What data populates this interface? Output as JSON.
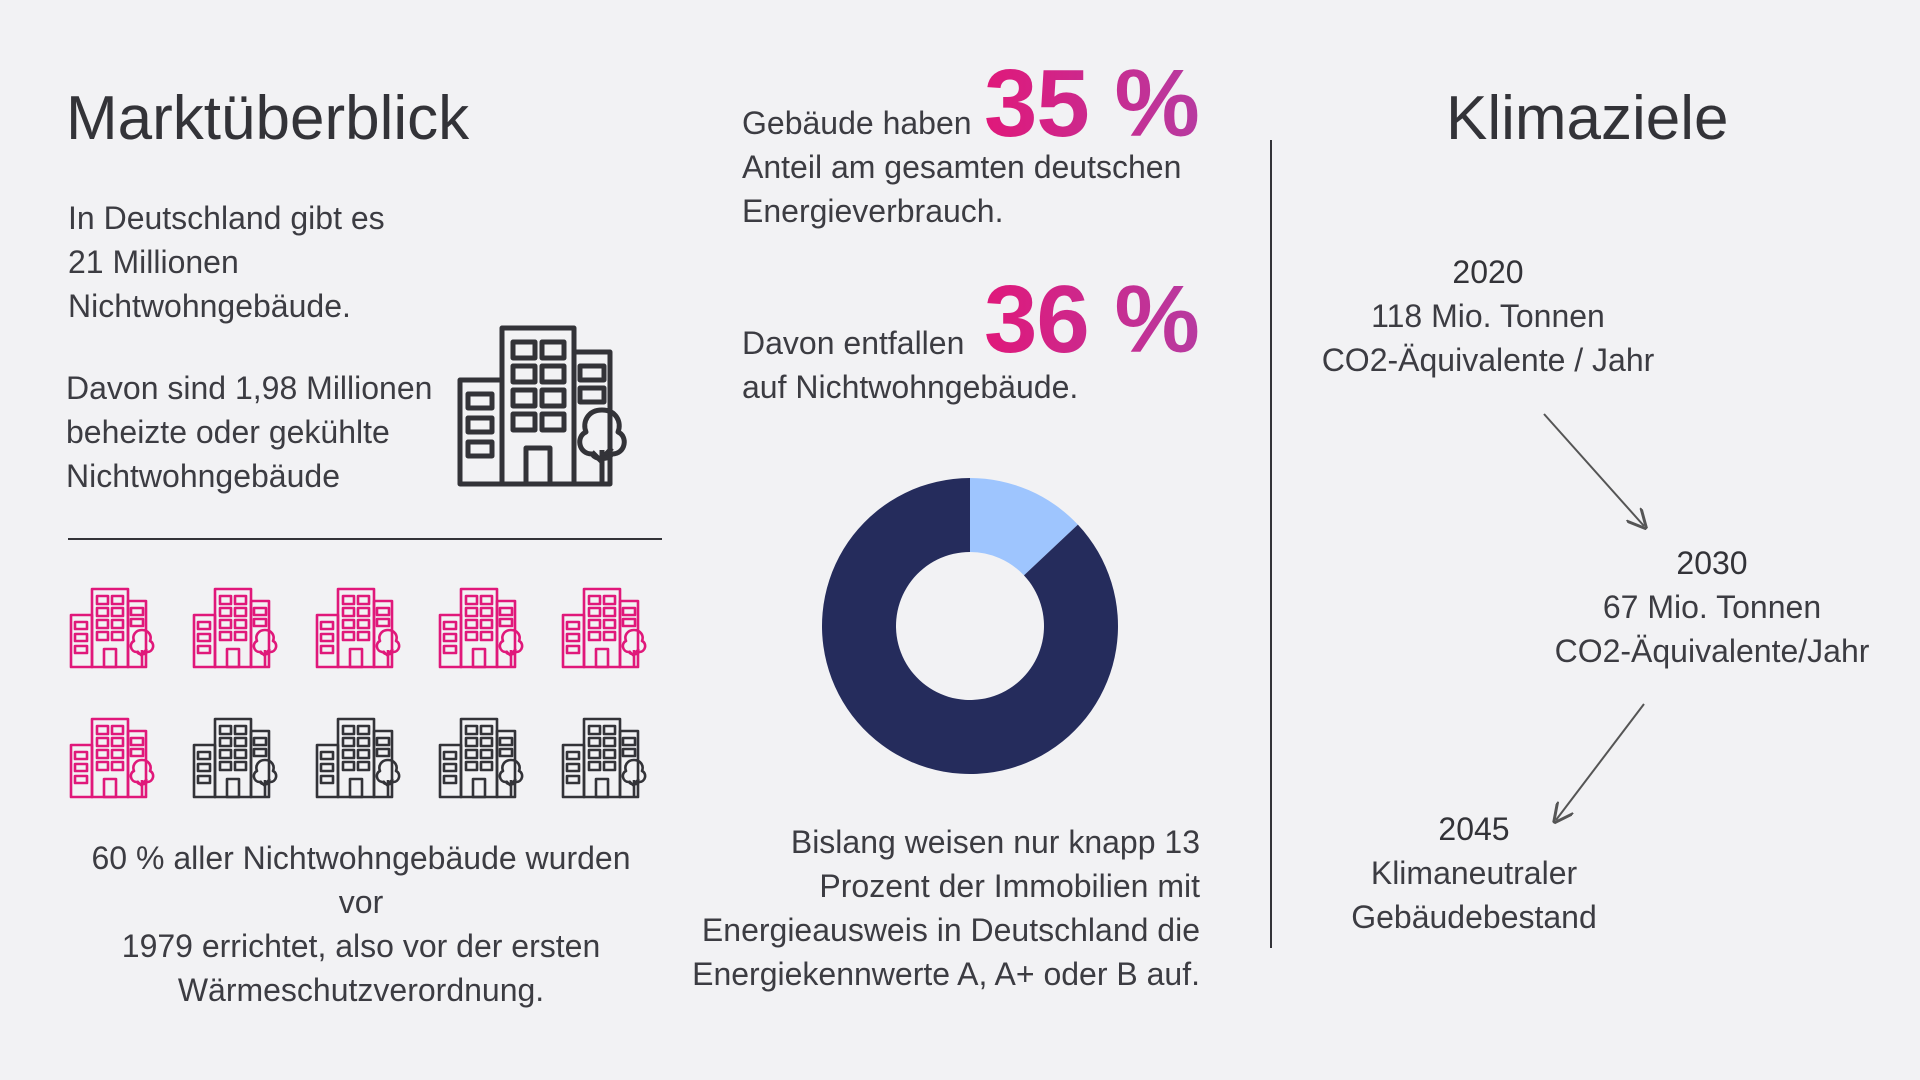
{
  "left": {
    "title": "Marktüberblick",
    "intro": [
      "In Deutschland gibt es",
      "21 Millionen",
      "Nichtwohngebäude."
    ],
    "sub": [
      "Davon sind 1,98 Millionen",
      "beheizte oder gekühlte",
      "Nichtwohngebäude"
    ],
    "grid": {
      "total": 10,
      "highlighted": 6,
      "highlight_color": "#e0187a",
      "base_color": "#333338"
    },
    "footer": [
      "60 % aller Nichtwohngebäude wurden vor",
      "1979 errichtet, also vor der ersten",
      "Wärmeschutzverordnung."
    ]
  },
  "middle": {
    "stat1": {
      "lead": "Gebäude haben",
      "value": "35 %",
      "rest": [
        "Anteil am gesamten deutschen",
        "Energieverbrauch."
      ]
    },
    "stat2": {
      "lead": "Davon entfallen",
      "value": "36 %",
      "rest": [
        "auf Nichtwohngebäude."
      ]
    },
    "footer": [
      "Bislang weisen nur knapp 13",
      "Prozent der Immobilien mit",
      "Energieausweis in Deutschland die",
      "Energiekennwerte A, A+ oder B auf."
    ]
  },
  "chart_data": {
    "type": "pie",
    "donut": true,
    "slices": [
      {
        "value": 13,
        "color": "#9ec5fe"
      },
      {
        "value": 87,
        "color": "#252c5c"
      }
    ]
  },
  "right": {
    "title": "Klimaziele",
    "t2020": {
      "year": "2020",
      "lines": [
        "118 Mio. Tonnen",
        "CO2-Äquivalente / Jahr"
      ]
    },
    "t2030": {
      "year": "2030",
      "lines": [
        "67 Mio. Tonnen",
        "CO2-Äquivalente/Jahr"
      ]
    },
    "t2045": {
      "year": "2045",
      "lines": [
        "Klimaneutraler",
        "Gebäudebestand"
      ]
    }
  },
  "colors": {
    "accent": "#e0187a",
    "accent2": "#b73aa0",
    "text": "#333338",
    "background": "#f2f2f4"
  },
  "icons": {
    "building": "building-with-tree-icon"
  }
}
